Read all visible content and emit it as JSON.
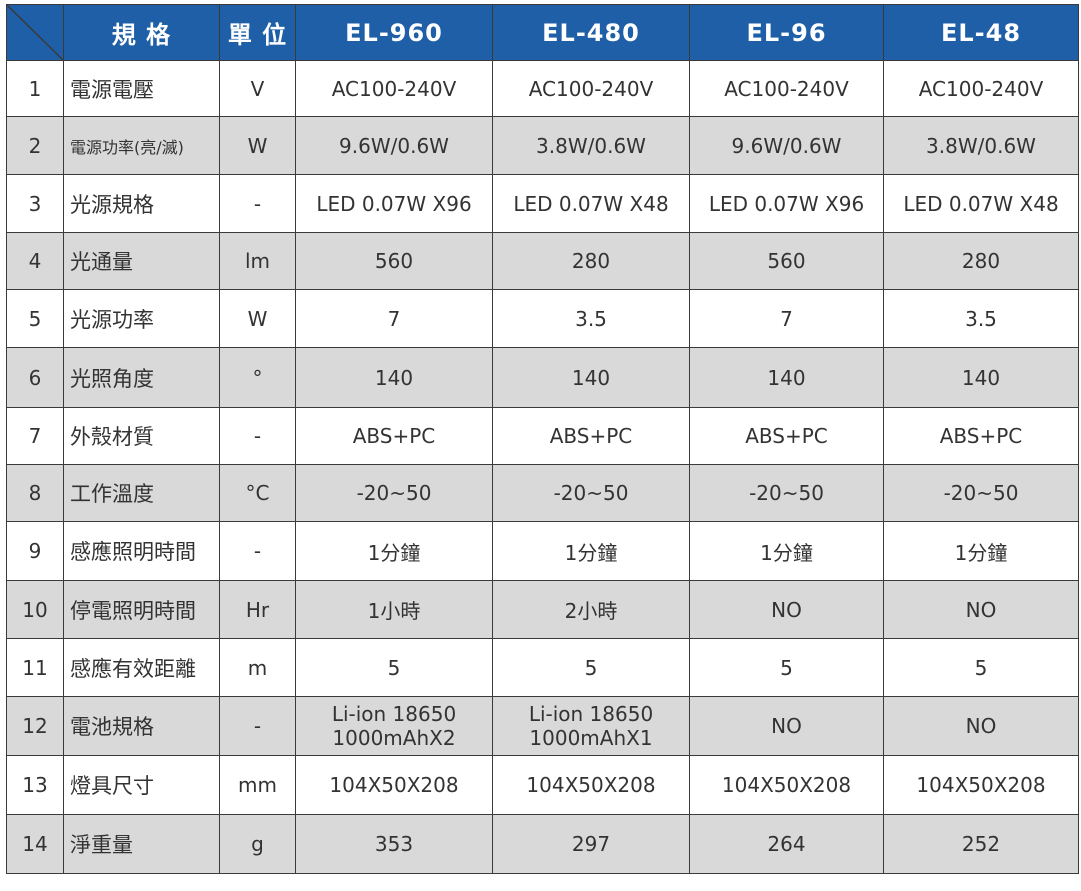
{
  "header": {
    "spec": "規 格",
    "unit": "單 位",
    "models": [
      "EL-960",
      "EL-480",
      "EL-96",
      "EL-48"
    ]
  },
  "rows": [
    {
      "no": "1",
      "name": "電源電壓",
      "unit": "V",
      "values": [
        "AC100-240V",
        "AC100-240V",
        "AC100-240V",
        "AC100-240V"
      ]
    },
    {
      "no": "2",
      "name": "電源功率(亮/滅)",
      "unit": "W",
      "values": [
        "9.6W/0.6W",
        "3.8W/0.6W",
        "9.6W/0.6W",
        "3.8W/0.6W"
      ]
    },
    {
      "no": "3",
      "name": "光源規格",
      "unit": "-",
      "values": [
        "LED 0.07W X96",
        "LED 0.07W X48",
        "LED 0.07W X96",
        "LED 0.07W X48"
      ]
    },
    {
      "no": "4",
      "name": "光通量",
      "unit": "lm",
      "values": [
        "560",
        "280",
        "560",
        "280"
      ]
    },
    {
      "no": "5",
      "name": "光源功率",
      "unit": "W",
      "values": [
        "7",
        "3.5",
        "7",
        "3.5"
      ]
    },
    {
      "no": "6",
      "name": "光照角度",
      "unit": "°",
      "values": [
        "140",
        "140",
        "140",
        "140"
      ]
    },
    {
      "no": "7",
      "name": "外殼材質",
      "unit": "-",
      "values": [
        "ABS+PC",
        "ABS+PC",
        "ABS+PC",
        "ABS+PC"
      ]
    },
    {
      "no": "8",
      "name": "工作溫度",
      "unit": "°C",
      "values": [
        "-20~50",
        "-20~50",
        "-20~50",
        "-20~50"
      ]
    },
    {
      "no": "9",
      "name": "感應照明時間",
      "unit": "-",
      "values": [
        "1分鐘",
        "1分鐘",
        "1分鐘",
        "1分鐘"
      ]
    },
    {
      "no": "10",
      "name": "停電照明時間",
      "unit": "Hr",
      "values": [
        "1小時",
        "2小時",
        "NO",
        "NO"
      ]
    },
    {
      "no": "11",
      "name": "感應有效距離",
      "unit": "m",
      "values": [
        "5",
        "5",
        "5",
        "5"
      ]
    },
    {
      "no": "12",
      "name": "電池規格",
      "unit": "-",
      "values": [
        [
          "Li-ion 18650",
          "1000mAhX2"
        ],
        [
          "Li-ion 18650",
          "1000mAhX1"
        ],
        "NO",
        "NO"
      ]
    },
    {
      "no": "13",
      "name": "燈具尺寸",
      "unit": "mm",
      "values": [
        "104X50X208",
        "104X50X208",
        "104X50X208",
        "104X50X208"
      ]
    },
    {
      "no": "14",
      "name": "淨重量",
      "unit": "g",
      "values": [
        "353",
        "297",
        "264",
        "252"
      ]
    }
  ]
}
